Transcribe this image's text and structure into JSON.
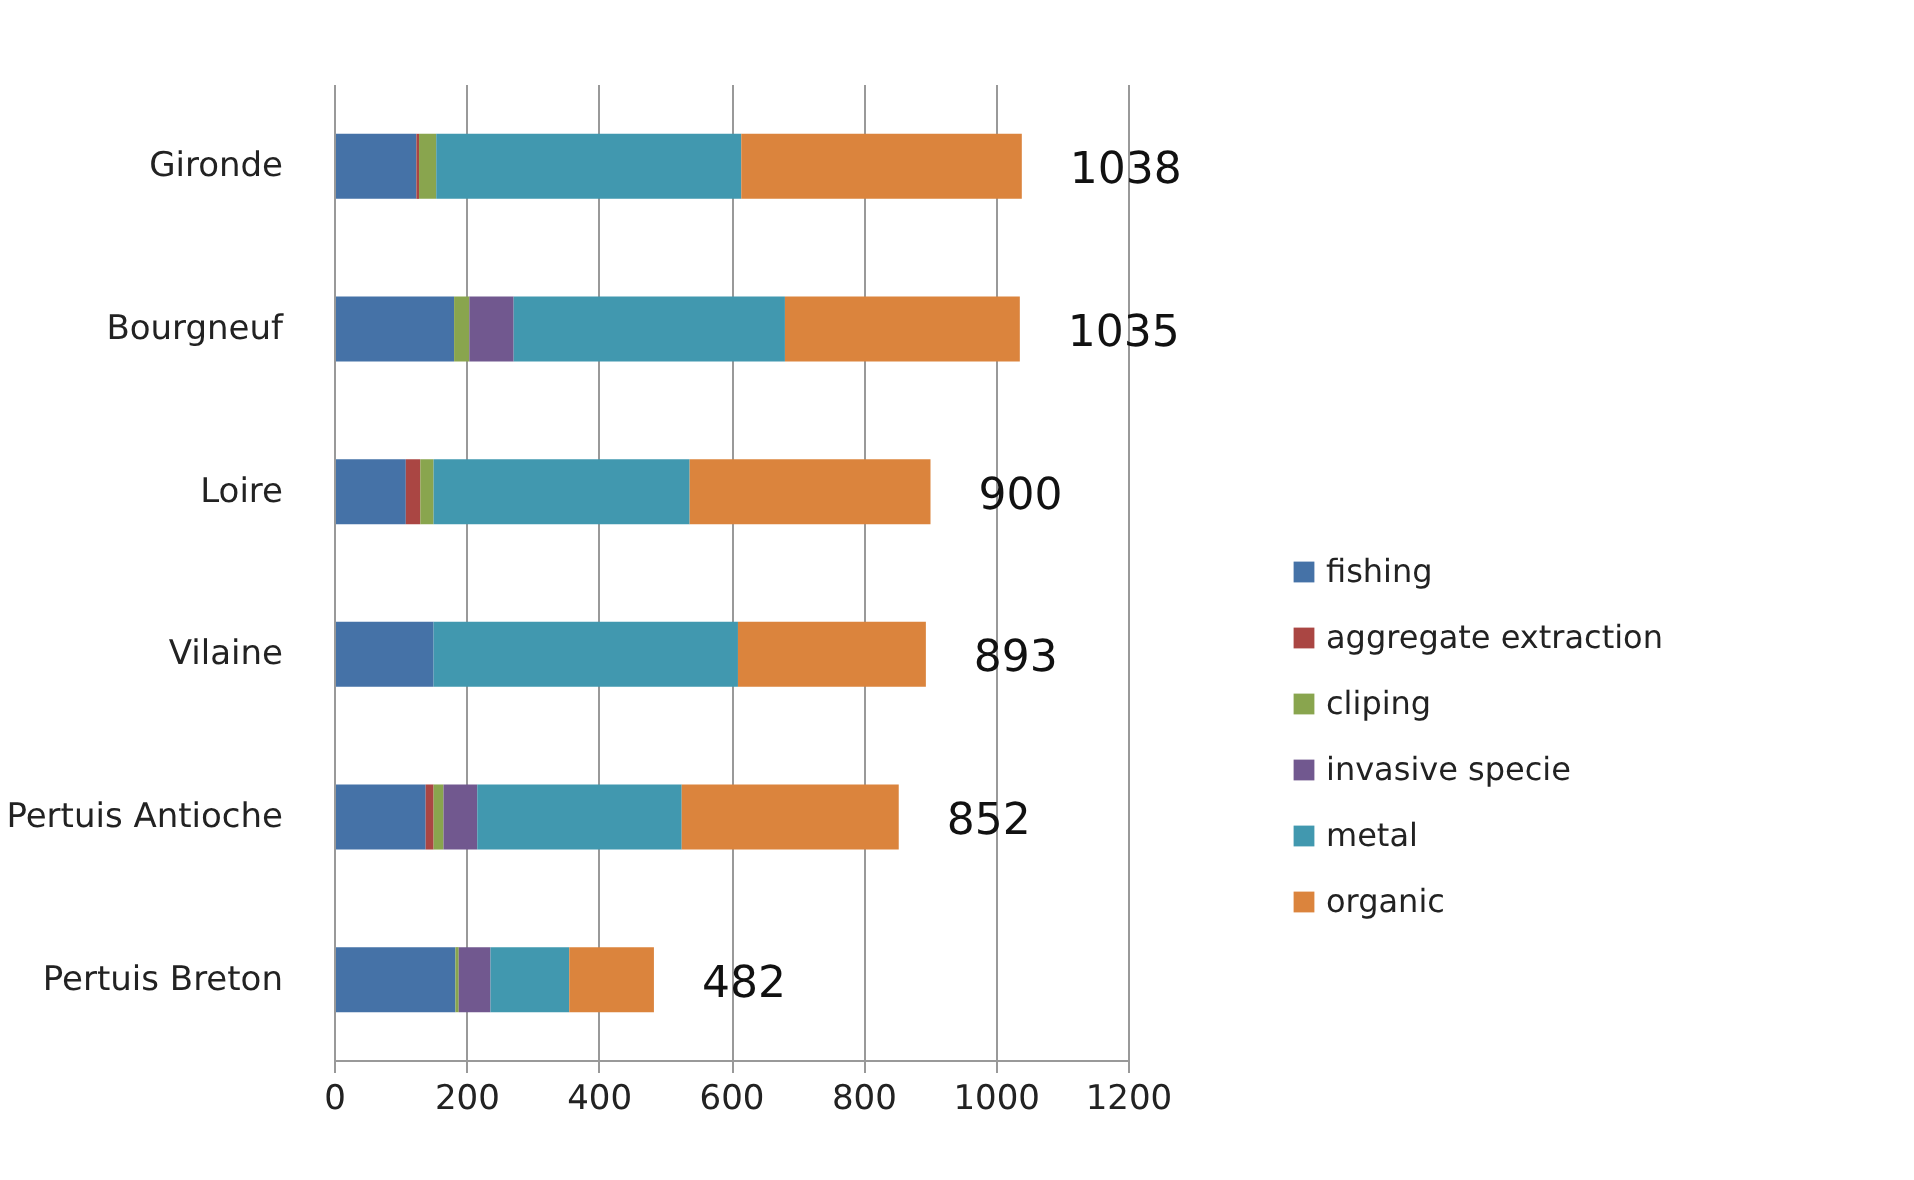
{
  "chart_data": {
    "type": "bar",
    "orientation": "horizontal",
    "stacked": true,
    "categories": [
      "Gironde",
      "Bourgneuf",
      "Loire",
      "Vilaine",
      "Pertuis Antioche",
      "Pertuis Breton"
    ],
    "series": [
      {
        "name": "fishing",
        "color": "#4572a7",
        "values": [
          123,
          180,
          107,
          149,
          137,
          182
        ]
      },
      {
        "name": "aggregate extraction",
        "color": "#aa4643",
        "values": [
          4,
          0,
          22,
          0,
          12,
          0
        ]
      },
      {
        "name": "cliping",
        "color": "#89a54e",
        "values": [
          26,
          23,
          20,
          0,
          15,
          5
        ]
      },
      {
        "name": "invasive specie",
        "color": "#71588f",
        "values": [
          0,
          67,
          0,
          0,
          51,
          48
        ]
      },
      {
        "name": "metal",
        "color": "#4198af",
        "values": [
          461,
          410,
          387,
          460,
          309,
          119
        ]
      },
      {
        "name": "organic",
        "color": "#db843d",
        "values": [
          424,
          355,
          364,
          284,
          328,
          128
        ]
      }
    ],
    "totals": [
      "1038",
      "1035",
      "900",
      "893",
      "852",
      "482"
    ],
    "xlim": [
      0,
      1200
    ],
    "xticks": [
      0,
      200,
      400,
      600,
      800,
      1000,
      1200
    ],
    "grid": "x",
    "legend": "right"
  }
}
